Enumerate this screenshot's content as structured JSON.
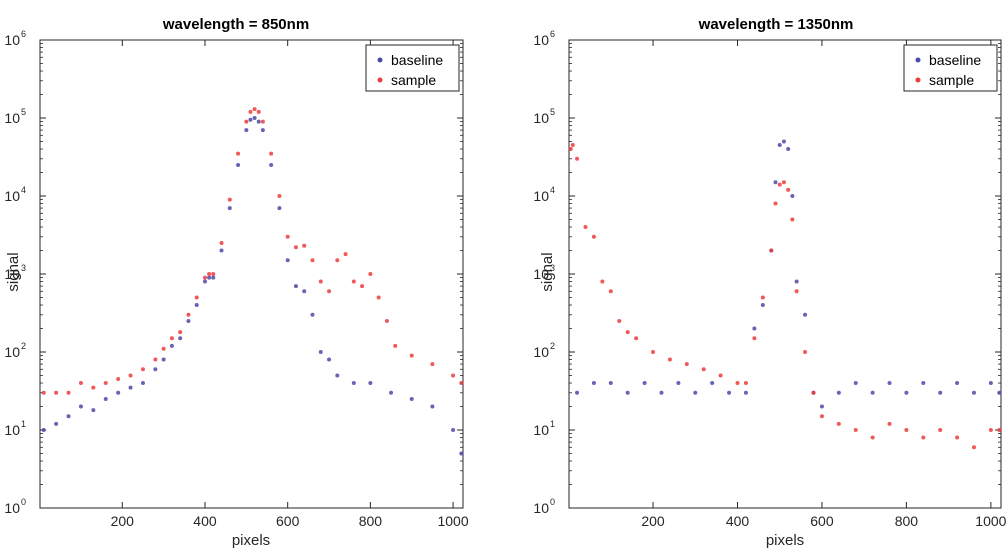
{
  "chart_data": [
    {
      "type": "scatter",
      "title": "wavelength = 850nm",
      "xlabel": "pixels",
      "ylabel": "signal",
      "xlim": [
        1,
        1024
      ],
      "ylim": [
        1,
        1000000
      ],
      "yscale": "log",
      "x_ticks": [
        200,
        400,
        600,
        800,
        1000
      ],
      "y_ticks": [
        1,
        10,
        100,
        1000,
        10000,
        100000,
        1000000
      ],
      "y_tick_labels": [
        {
          "base": "10",
          "exp": "0"
        },
        {
          "base": "10",
          "exp": "1"
        },
        {
          "base": "10",
          "exp": "2"
        },
        {
          "base": "10",
          "exp": "3"
        },
        {
          "base": "10",
          "exp": "4"
        },
        {
          "base": "10",
          "exp": "5"
        },
        {
          "base": "10",
          "exp": "6"
        }
      ],
      "grid": false,
      "legend_position": "top-right",
      "series": [
        {
          "name": "baseline",
          "color": "#4a4aa8",
          "x": [
            10,
            40,
            70,
            100,
            130,
            160,
            190,
            220,
            250,
            280,
            300,
            320,
            340,
            360,
            380,
            400,
            410,
            420,
            440,
            460,
            480,
            500,
            510,
            520,
            530,
            540,
            560,
            580,
            600,
            620,
            640,
            660,
            680,
            700,
            720,
            760,
            800,
            850,
            900,
            950,
            1000,
            1020
          ],
          "y": [
            10,
            12,
            15,
            20,
            18,
            25,
            30,
            35,
            40,
            60,
            80,
            120,
            150,
            250,
            400,
            800,
            900,
            900,
            2000,
            7000,
            25000,
            70000,
            95000,
            100000,
            90000,
            70000,
            25000,
            7000,
            1500,
            700,
            600,
            300,
            100,
            80,
            50,
            40,
            40,
            30,
            25,
            20,
            10,
            5
          ]
        },
        {
          "name": "sample",
          "color": "#ee3b3b",
          "x": [
            10,
            40,
            70,
            100,
            130,
            160,
            190,
            220,
            250,
            280,
            300,
            320,
            340,
            360,
            380,
            400,
            410,
            420,
            440,
            460,
            480,
            500,
            510,
            520,
            530,
            540,
            560,
            580,
            600,
            620,
            640,
            660,
            680,
            700,
            720,
            740,
            760,
            780,
            800,
            820,
            840,
            860,
            900,
            950,
            1000,
            1020
          ],
          "y": [
            30,
            30,
            30,
            40,
            35,
            40,
            45,
            50,
            60,
            80,
            110,
            150,
            180,
            300,
            500,
            900,
            1000,
            1000,
            2500,
            9000,
            35000,
            90000,
            120000,
            130000,
            120000,
            90000,
            35000,
            10000,
            3000,
            2200,
            2300,
            1500,
            800,
            600,
            1500,
            1800,
            800,
            700,
            1000,
            500,
            250,
            120,
            90,
            70,
            50,
            40
          ]
        }
      ]
    },
    {
      "type": "scatter",
      "title": "wavelength = 1350nm",
      "xlabel": "pixels",
      "ylabel": "signal",
      "xlim": [
        1,
        1024
      ],
      "ylim": [
        1,
        1000000
      ],
      "yscale": "log",
      "x_ticks": [
        200,
        400,
        600,
        800,
        1000
      ],
      "y_ticks": [
        1,
        10,
        100,
        1000,
        10000,
        100000,
        1000000
      ],
      "y_tick_labels": [
        {
          "base": "10",
          "exp": "0"
        },
        {
          "base": "10",
          "exp": "1"
        },
        {
          "base": "10",
          "exp": "2"
        },
        {
          "base": "10",
          "exp": "3"
        },
        {
          "base": "10",
          "exp": "4"
        },
        {
          "base": "10",
          "exp": "5"
        },
        {
          "base": "10",
          "exp": "6"
        }
      ],
      "grid": false,
      "legend_position": "top-right",
      "series": [
        {
          "name": "baseline",
          "color": "#4a4aa8",
          "x": [
            20,
            60,
            100,
            140,
            180,
            220,
            260,
            300,
            340,
            380,
            420,
            440,
            460,
            480,
            490,
            500,
            510,
            520,
            530,
            540,
            560,
            580,
            600,
            640,
            680,
            720,
            760,
            800,
            840,
            880,
            920,
            960,
            1000,
            1020
          ],
          "y": [
            30,
            40,
            40,
            30,
            40,
            30,
            40,
            30,
            40,
            30,
            30,
            200,
            400,
            2000,
            15000,
            45000,
            50000,
            40000,
            10000,
            800,
            300,
            30,
            20,
            30,
            40,
            30,
            40,
            30,
            40,
            30,
            40,
            30,
            40,
            30
          ]
        },
        {
          "name": "sample",
          "color": "#ee3b3b",
          "x": [
            5,
            10,
            20,
            40,
            60,
            80,
            100,
            120,
            140,
            160,
            200,
            240,
            280,
            320,
            360,
            400,
            420,
            440,
            460,
            480,
            490,
            500,
            510,
            520,
            530,
            540,
            560,
            580,
            600,
            640,
            680,
            720,
            760,
            800,
            840,
            880,
            920,
            960,
            1000,
            1020
          ],
          "y": [
            40000,
            45000,
            30000,
            4000,
            3000,
            800,
            600,
            250,
            180,
            150,
            100,
            80,
            70,
            60,
            50,
            40,
            40,
            150,
            500,
            2000,
            8000,
            14000,
            15000,
            12000,
            5000,
            600,
            100,
            30,
            15,
            12,
            10,
            8,
            12,
            10,
            8,
            10,
            8,
            6,
            10,
            10
          ]
        }
      ]
    }
  ]
}
